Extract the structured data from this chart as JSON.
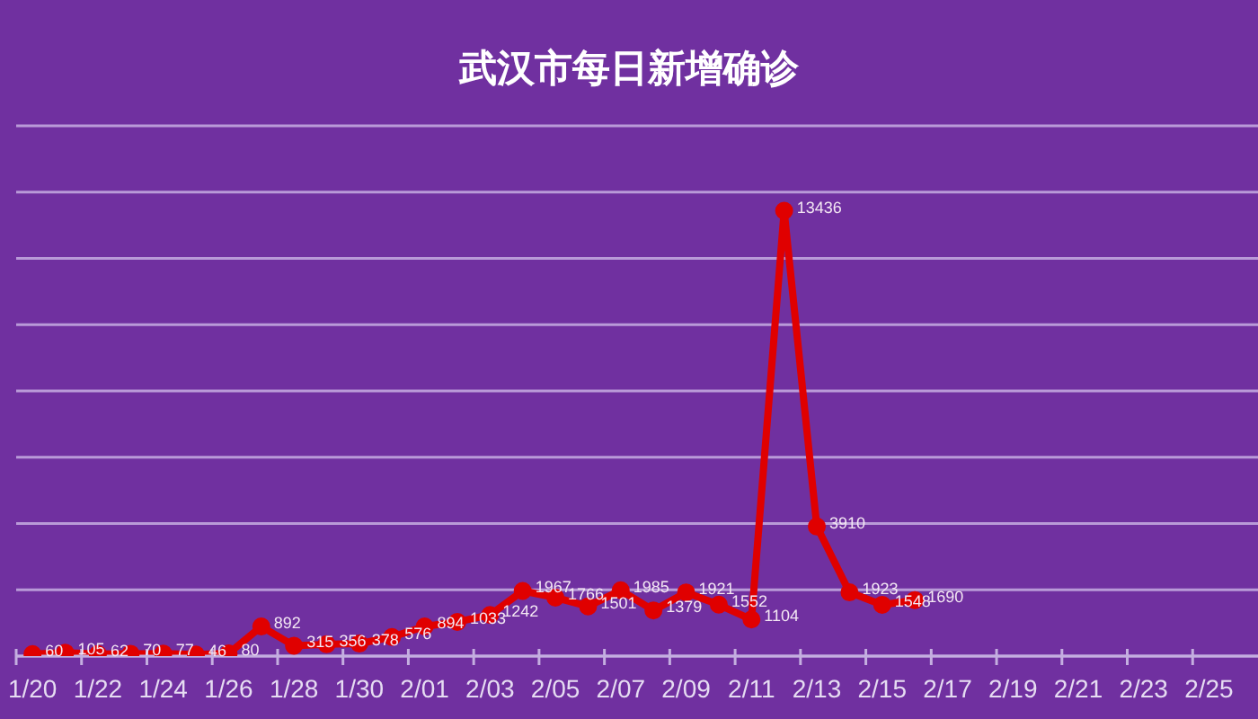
{
  "chart_data": {
    "type": "line",
    "title": "武汉市每日新增确诊",
    "categories": [
      "1/20",
      null,
      "1/22",
      null,
      "1/24",
      null,
      "1/26",
      null,
      "1/28",
      null,
      "1/30",
      null,
      "2/01",
      null,
      "2/03",
      null,
      "2/05",
      null,
      "2/07",
      null,
      "2/09",
      null,
      "2/11",
      null,
      "2/13",
      null,
      "2/15",
      null,
      "2/17",
      null,
      "2/19",
      null,
      "2/21",
      null,
      "2/23",
      null,
      "2/25",
      null
    ],
    "series": [
      {
        "color": "#e00000",
        "values": [
          60,
          105,
          62,
          70,
          77,
          46,
          80,
          892,
          315,
          356,
          378,
          576,
          894,
          1033,
          1242,
          1967,
          1766,
          1501,
          1985,
          1379,
          1921,
          1552,
          1104,
          13436,
          3910,
          1923,
          1548,
          1690,
          null,
          null,
          null,
          null,
          null,
          null,
          null,
          null,
          null,
          null
        ]
      }
    ],
    "ylim": [
      0,
      16000
    ],
    "yticks": [
      {
        "value": 0,
        "label": null
      },
      {
        "value": 2000,
        "label": null
      },
      {
        "value": 4000,
        "label": null
      },
      {
        "value": 6000,
        "label": null
      },
      {
        "value": 8000,
        "label": null
      },
      {
        "value": 10000,
        "label": null
      },
      {
        "value": 12000,
        "label": null
      },
      {
        "value": 14000,
        "label": null
      },
      {
        "value": 16000,
        "label": null
      }
    ],
    "grid": "y",
    "tick_labels": "x",
    "marker": "circle",
    "data_labels": true
  }
}
